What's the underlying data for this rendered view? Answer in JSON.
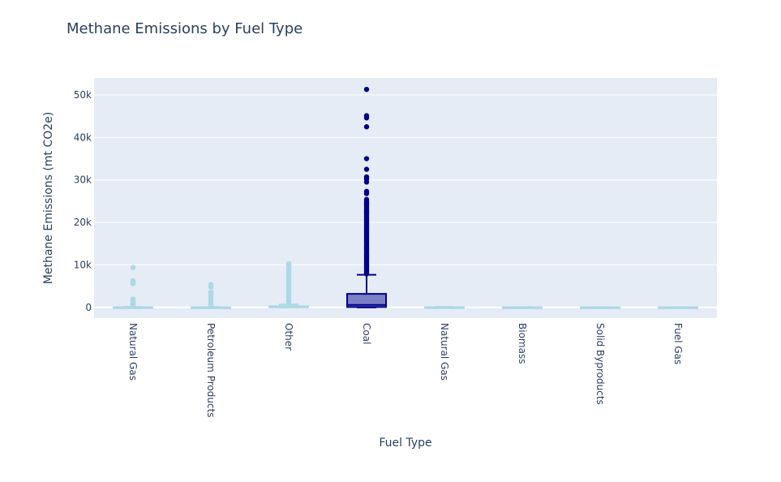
{
  "chart_data": {
    "type": "box",
    "title": "Methane Emissions by Fuel Type",
    "xlabel": "Fuel Type",
    "ylabel": "Methane Emissions (mt CO2e)",
    "ylim": [
      -2500,
      54000
    ],
    "yticks": [
      0,
      10000,
      20000,
      30000,
      40000,
      50000
    ],
    "ytick_labels": [
      "0",
      "10k",
      "20k",
      "30k",
      "40k",
      "50k"
    ],
    "grid": true,
    "legend": "none",
    "colors": {
      "light": "#add8e6",
      "coal": "#00008b",
      "coal_fill": "#7c7fc4",
      "plot_bg": "#e5ecf6"
    },
    "categories": [
      "Natural Gas",
      "Petroleum Products",
      "Other",
      "Coal",
      "Natural Gas",
      "Biomass",
      "Solid Byproducts",
      "Fuel Gas"
    ],
    "boxes": [
      {
        "category": "Natural Gas",
        "q1": 0,
        "median": 20,
        "q3": 60,
        "lowerfence": 0,
        "upperfence": 150,
        "outliers": [
          400,
          600,
          800,
          1000,
          1200,
          1500,
          1700,
          2000,
          5600,
          6000,
          6300,
          9400
        ]
      },
      {
        "category": "Petroleum Products",
        "q1": 0,
        "median": 10,
        "q3": 40,
        "lowerfence": 0,
        "upperfence": 100,
        "outliers": [
          300,
          600,
          900,
          1200,
          1500,
          1800,
          2100,
          2400,
          2700,
          3000,
          3300,
          3600,
          4800,
          5100,
          5400
        ]
      },
      {
        "category": "Other",
        "q1": 20,
        "median": 100,
        "q3": 300,
        "lowerfence": 0,
        "upperfence": 700,
        "outliers": [
          1000,
          1300,
          1600,
          1900,
          2200,
          2500,
          2800,
          3100,
          3400,
          3700,
          4000,
          4300,
          4600,
          4900,
          5200,
          5500,
          5800,
          6100,
          6400,
          6700,
          7000,
          7300,
          7600,
          7900,
          8200,
          8500,
          8800,
          9100,
          9400,
          9700,
          10000,
          10300
        ]
      },
      {
        "category": "Coal",
        "q1": 100,
        "median": 600,
        "q3": 3200,
        "lowerfence": 0,
        "upperfence": 7700,
        "outliers": [
          7900,
          8200,
          8500,
          8800,
          9100,
          9400,
          9700,
          10000,
          10300,
          10600,
          10900,
          11200,
          11500,
          11800,
          12100,
          12400,
          12700,
          13000,
          13300,
          13600,
          13900,
          14200,
          14500,
          14800,
          15100,
          15400,
          15700,
          16000,
          16300,
          16600,
          16900,
          17200,
          17500,
          17800,
          18100,
          18400,
          18700,
          19000,
          19300,
          19600,
          19900,
          20200,
          20500,
          20800,
          21100,
          21400,
          21700,
          22000,
          22300,
          22600,
          22900,
          23200,
          23500,
          23800,
          24100,
          24400,
          24700,
          25000,
          25400,
          26800,
          27300,
          29500,
          30200,
          30700,
          32500,
          35000,
          42500,
          44600,
          45100,
          51300
        ]
      },
      {
        "category": "Natural Gas",
        "q1": 0,
        "median": 20,
        "q3": 80,
        "lowerfence": 0,
        "upperfence": 150,
        "outliers": []
      },
      {
        "category": "Biomass",
        "q1": 0,
        "median": 10,
        "q3": 40,
        "lowerfence": 0,
        "upperfence": 90,
        "outliers": []
      },
      {
        "category": "Solid Byproducts",
        "q1": 0,
        "median": 10,
        "q3": 40,
        "lowerfence": 0,
        "upperfence": 90,
        "outliers": []
      },
      {
        "category": "Fuel Gas",
        "q1": 0,
        "median": 10,
        "q3": 30,
        "lowerfence": 0,
        "upperfence": 80,
        "outliers": []
      }
    ]
  }
}
